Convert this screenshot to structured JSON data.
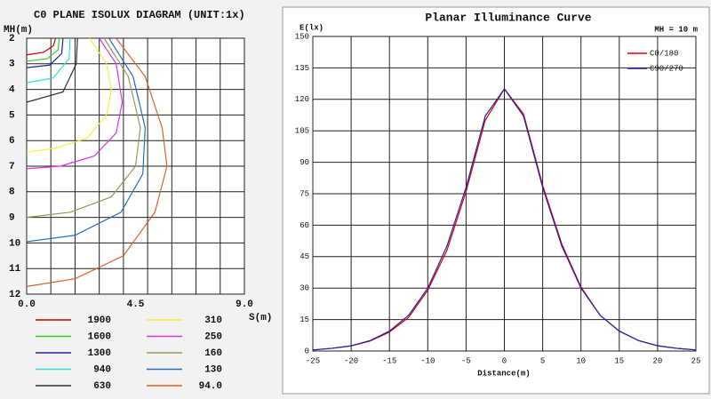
{
  "chart_data": [
    {
      "type": "contour",
      "title": "C0 PLANE ISOLUX DIAGRAM (UNIT:1x)",
      "y_label": "MH(m)",
      "x_label": "S(m)",
      "xlim": [
        0,
        9
      ],
      "ylim": [
        2,
        12
      ],
      "y_inverted": true,
      "xticks": [
        {
          "value": 0,
          "label": "0.0"
        },
        {
          "value": 4.5,
          "label": "4.5"
        },
        {
          "value": 9,
          "label": "9.0"
        }
      ],
      "yticks": [
        2,
        3,
        4,
        5,
        6,
        7,
        8,
        9,
        10,
        11,
        12
      ],
      "xgrid": [
        0,
        1,
        2,
        3,
        4,
        5,
        6,
        7,
        8,
        9
      ],
      "series": [
        {
          "name": "1900",
          "color": "#cc0000",
          "x": [
            1.2,
            1.1,
            0.7,
            0
          ],
          "values": [
            2,
            2.3,
            2.55,
            2.65
          ]
        },
        {
          "name": "1600",
          "color": "#33cc33",
          "x": [
            1.35,
            1.3,
            0.85,
            0
          ],
          "values": [
            2,
            2.45,
            2.8,
            2.9
          ]
        },
        {
          "name": "1300",
          "color": "#2222aa",
          "x": [
            1.5,
            1.45,
            0.95,
            0
          ],
          "values": [
            2,
            2.6,
            3.05,
            3.15
          ]
        },
        {
          "name": "940",
          "color": "#33dddd",
          "x": [
            1.8,
            1.75,
            1.1,
            0
          ],
          "values": [
            2,
            2.8,
            3.55,
            3.75
          ]
        },
        {
          "name": "630",
          "color": "#333333",
          "x": [
            2.1,
            2.05,
            1.5,
            0
          ],
          "values": [
            2,
            3.0,
            4.1,
            4.5
          ]
        },
        {
          "name": "310",
          "color": "#eeee44",
          "x": [
            2.6,
            3.3,
            3.5,
            3.3,
            2.5,
            1.2,
            0
          ],
          "values": [
            2,
            3,
            4,
            5,
            5.9,
            6.3,
            6.45
          ]
        },
        {
          "name": "250",
          "color": "#dd33dd",
          "x": [
            3.0,
            3.7,
            3.95,
            3.7,
            2.8,
            1.4,
            0
          ],
          "values": [
            2,
            3,
            4.5,
            5.7,
            6.6,
            7.0,
            7.1
          ]
        },
        {
          "name": "160",
          "color": "#999955",
          "x": [
            3.2,
            4.2,
            4.7,
            4.5,
            3.5,
            1.8,
            0
          ],
          "values": [
            2,
            3.5,
            5.5,
            7,
            8.2,
            8.8,
            9.0
          ]
        },
        {
          "name": "130",
          "color": "#1f6fc0",
          "x": [
            3.4,
            4.4,
            4.9,
            4.8,
            3.9,
            2.0,
            0
          ],
          "values": [
            2,
            3.5,
            5.5,
            7.3,
            8.8,
            9.7,
            9.95
          ]
        },
        {
          "name": "94.0",
          "color": "#d9622b",
          "x": [
            3.7,
            4.9,
            5.6,
            5.8,
            5.3,
            4.0,
            2.0,
            0
          ],
          "values": [
            2,
            3.5,
            5.5,
            7,
            8.8,
            10.5,
            11.4,
            11.7
          ]
        }
      ]
    },
    {
      "type": "line",
      "title": "Planar Illuminance Curve",
      "annotation": "MH = 10 m",
      "y_label": "E(lx)",
      "x_label": "Distance(m)",
      "xlim": [
        -25,
        25
      ],
      "ylim": [
        0,
        150
      ],
      "xticks": [
        -25,
        -20,
        -15,
        -10,
        -5,
        0,
        5,
        10,
        15,
        20,
        25
      ],
      "yticks": [
        0,
        15,
        30,
        45,
        60,
        75,
        90,
        105,
        120,
        135,
        150
      ],
      "grid": true,
      "x": [
        -25,
        -22.5,
        -20,
        -17.5,
        -15,
        -12.5,
        -10,
        -7.5,
        -5,
        -2.5,
        0,
        2.5,
        5,
        7.5,
        10,
        12.5,
        15,
        17.5,
        20,
        22.5,
        25
      ],
      "series": [
        {
          "name": "C0/180",
          "color": "#dd0000",
          "values": [
            0.5,
            1.3,
            2.4,
            4.8,
            9,
            16,
            29,
            48,
            76,
            110,
            125,
            113,
            79,
            51,
            30.5,
            17,
            9.5,
            5,
            2.5,
            1.3,
            0.5
          ]
        },
        {
          "name": "C90/270",
          "color": "#2222aa",
          "values": [
            0.5,
            1.3,
            2.5,
            5,
            9.5,
            17,
            30,
            50,
            78,
            112,
            125,
            112,
            78,
            50,
            30,
            17,
            9.5,
            5,
            2.5,
            1.3,
            0.5
          ]
        }
      ]
    }
  ]
}
